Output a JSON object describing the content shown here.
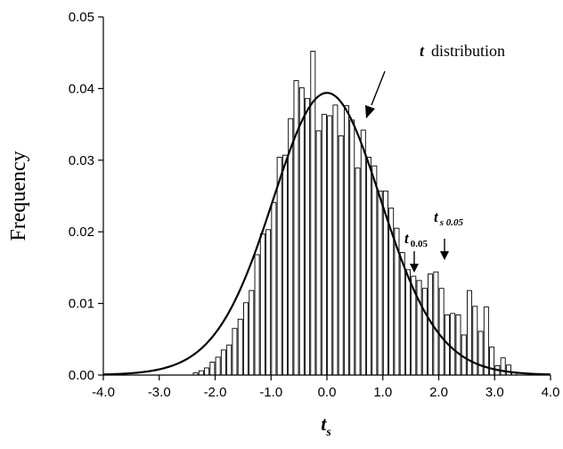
{
  "chart_data": {
    "type": "bar",
    "title": "",
    "xlabel": "t",
    "xlabel_sub": "s",
    "ylabel": "Frequency",
    "xlim": [
      -4.0,
      4.0
    ],
    "ylim": [
      0,
      0.05
    ],
    "x_ticks": [
      "-4.0",
      "-3.0",
      "-2.0",
      "-1.0",
      "0.0",
      "1.0",
      "2.0",
      "3.0",
      "4.0"
    ],
    "y_ticks": [
      "0.00",
      "0.01",
      "0.02",
      "0.03",
      "0.04",
      "0.05"
    ],
    "grid": false,
    "bin_width": 0.1,
    "series": [
      {
        "values": [
          {
            "x": -2.35,
            "y": 0.0003
          },
          {
            "x": -2.25,
            "y": 0.0006
          },
          {
            "x": -2.15,
            "y": 0.001
          },
          {
            "x": -2.05,
            "y": 0.0018
          },
          {
            "x": -1.95,
            "y": 0.0025
          },
          {
            "x": -1.85,
            "y": 0.0035
          },
          {
            "x": -1.75,
            "y": 0.0042
          },
          {
            "x": -1.65,
            "y": 0.0065
          },
          {
            "x": -1.55,
            "y": 0.0078
          },
          {
            "x": -1.45,
            "y": 0.0101
          },
          {
            "x": -1.35,
            "y": 0.0118
          },
          {
            "x": -1.25,
            "y": 0.0168
          },
          {
            "x": -1.15,
            "y": 0.0197
          },
          {
            "x": -1.05,
            "y": 0.0203
          },
          {
            "x": -0.95,
            "y": 0.0241
          },
          {
            "x": -0.85,
            "y": 0.0304
          },
          {
            "x": -0.75,
            "y": 0.0307
          },
          {
            "x": -0.65,
            "y": 0.0358
          },
          {
            "x": -0.55,
            "y": 0.0411
          },
          {
            "x": -0.45,
            "y": 0.0401
          },
          {
            "x": -0.35,
            "y": 0.0386
          },
          {
            "x": -0.25,
            "y": 0.0452
          },
          {
            "x": -0.15,
            "y": 0.0341
          },
          {
            "x": -0.05,
            "y": 0.0364
          },
          {
            "x": 0.05,
            "y": 0.0362
          },
          {
            "x": 0.15,
            "y": 0.0377
          },
          {
            "x": 0.25,
            "y": 0.0334
          },
          {
            "x": 0.35,
            "y": 0.0376
          },
          {
            "x": 0.45,
            "y": 0.0356
          },
          {
            "x": 0.55,
            "y": 0.0289
          },
          {
            "x": 0.65,
            "y": 0.0342
          },
          {
            "x": 0.75,
            "y": 0.0304
          },
          {
            "x": 0.85,
            "y": 0.0292
          },
          {
            "x": 0.95,
            "y": 0.0257
          },
          {
            "x": 1.05,
            "y": 0.0257
          },
          {
            "x": 1.15,
            "y": 0.0233
          },
          {
            "x": 1.25,
            "y": 0.0205
          },
          {
            "x": 1.35,
            "y": 0.0171
          },
          {
            "x": 1.45,
            "y": 0.0147
          },
          {
            "x": 1.55,
            "y": 0.0138
          },
          {
            "x": 1.65,
            "y": 0.0132
          },
          {
            "x": 1.75,
            "y": 0.0121
          },
          {
            "x": 1.85,
            "y": 0.0141
          },
          {
            "x": 1.95,
            "y": 0.0144
          },
          {
            "x": 2.05,
            "y": 0.0121
          },
          {
            "x": 2.15,
            "y": 0.0084
          },
          {
            "x": 2.25,
            "y": 0.0086
          },
          {
            "x": 2.35,
            "y": 0.0084
          },
          {
            "x": 2.45,
            "y": 0.0056
          },
          {
            "x": 2.55,
            "y": 0.0118
          },
          {
            "x": 2.65,
            "y": 0.0096
          },
          {
            "x": 2.75,
            "y": 0.0061
          },
          {
            "x": 2.85,
            "y": 0.0095
          },
          {
            "x": 2.95,
            "y": 0.0039
          },
          {
            "x": 3.05,
            "y": 0.0013
          },
          {
            "x": 3.15,
            "y": 0.0024
          },
          {
            "x": 3.25,
            "y": 0.0014
          },
          {
            "x": 3.35,
            "y": 0.0003
          }
        ]
      }
    ],
    "curve": {
      "label_var": "t",
      "label_text": "distribution",
      "df": 20
    },
    "annotations": [
      {
        "var": "t",
        "sub": "0.05",
        "x": 1.72
      },
      {
        "var": "t",
        "sub": "s 0.05",
        "x": 2.2
      }
    ],
    "colors": {
      "bar_fill": "#ffffff",
      "bar_stroke": "#000000",
      "curve": "#000000"
    }
  }
}
